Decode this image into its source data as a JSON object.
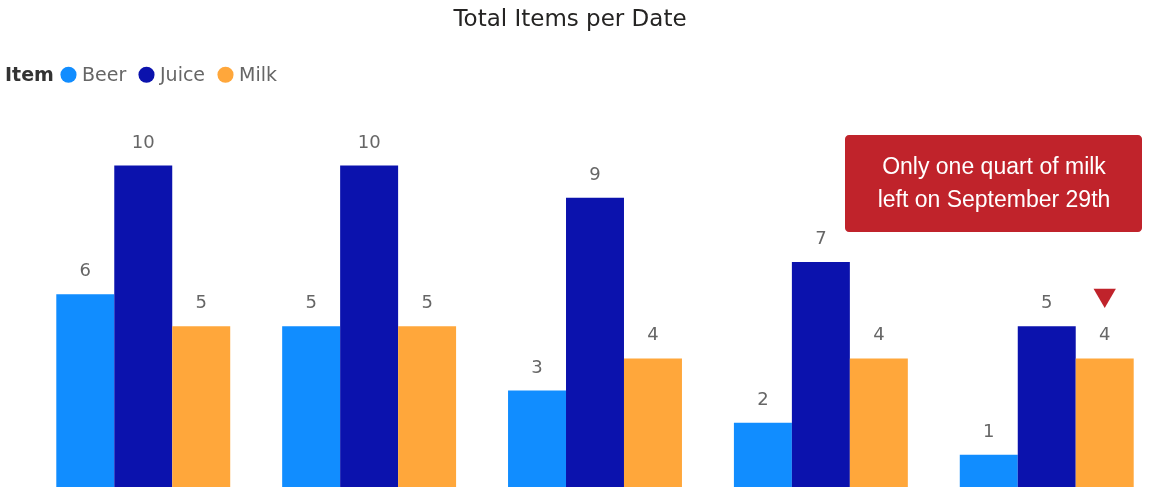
{
  "chart_data": {
    "type": "bar",
    "title": "Total Items per Date",
    "legend_title": "Item",
    "legend": "top left",
    "data_labels": true,
    "grid": false,
    "categories": [
      null,
      null,
      null,
      null,
      null
    ],
    "series": [
      {
        "name": "Beer",
        "color": "#118dff",
        "values": [
          6,
          5,
          3,
          2,
          1
        ]
      },
      {
        "name": "Juice",
        "color": "#0b12ad",
        "values": [
          10,
          10,
          9,
          7,
          5
        ]
      },
      {
        "name": "Milk",
        "color": "#ffa73b",
        "values": [
          5,
          5,
          4,
          4,
          4
        ]
      }
    ],
    "annotations": [
      "Only one quart of milk left on September 29th"
    ]
  }
}
